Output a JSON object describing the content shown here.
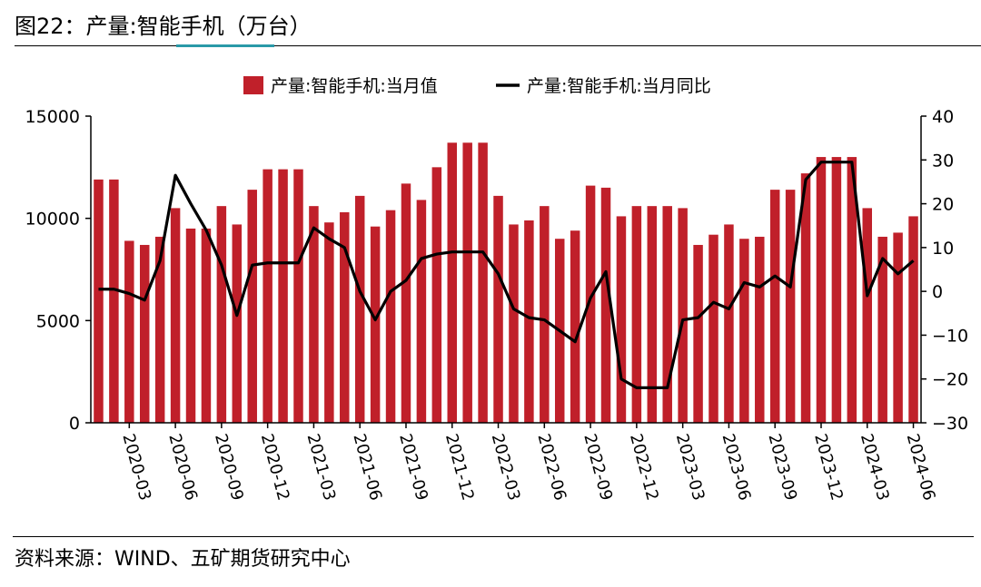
{
  "header": {
    "title": "图22：产量:智能手机（万台）"
  },
  "footer": {
    "source": "资料来源：WIND、五矿期货研究中心"
  },
  "chart_data": {
    "type": "bar+line",
    "title": "产量:智能手机（万台）",
    "categories": [
      "2020-01",
      "2020-02",
      "2020-03",
      "2020-04",
      "2020-05",
      "2020-06",
      "2020-07",
      "2020-08",
      "2020-09",
      "2020-10",
      "2020-11",
      "2020-12",
      "2021-01",
      "2021-02",
      "2021-03",
      "2021-04",
      "2021-05",
      "2021-06",
      "2021-07",
      "2021-08",
      "2021-09",
      "2021-10",
      "2021-11",
      "2021-12",
      "2022-01",
      "2022-02",
      "2022-03",
      "2022-04",
      "2022-05",
      "2022-06",
      "2022-07",
      "2022-08",
      "2022-09",
      "2022-10",
      "2022-11",
      "2022-12",
      "2023-01",
      "2023-02",
      "2023-03",
      "2023-04",
      "2023-05",
      "2023-06",
      "2023-07",
      "2023-08",
      "2023-09",
      "2023-10",
      "2023-11",
      "2023-12",
      "2024-01",
      "2024-02",
      "2024-03",
      "2024-04",
      "2024-05",
      "2024-06"
    ],
    "tick_labels": [
      "2020-03",
      "2020-06",
      "2020-09",
      "2020-12",
      "2021-03",
      "2021-06",
      "2021-09",
      "2021-12",
      "2022-03",
      "2022-06",
      "2022-09",
      "2022-12",
      "2023-03",
      "2023-06",
      "2023-09",
      "2023-12",
      "2024-03",
      "2024-06"
    ],
    "series": [
      {
        "name": "产量:智能手机:当月值",
        "type": "bar",
        "axis": "left",
        "color": "#c0202a",
        "values": [
          11900,
          11900,
          8900,
          8700,
          9100,
          10500,
          9500,
          9500,
          10600,
          9700,
          11400,
          12400,
          12400,
          12400,
          10600,
          9800,
          10300,
          11100,
          9600,
          10400,
          11700,
          10900,
          12500,
          13700,
          13700,
          13700,
          11100,
          9700,
          9900,
          10600,
          9000,
          9400,
          11600,
          11500,
          10100,
          10600,
          10600,
          10600,
          10500,
          8700,
          9200,
          9700,
          9000,
          9100,
          11400,
          11400,
          12200,
          13000,
          13000,
          13000,
          10500,
          9100,
          9300,
          10100
        ]
      },
      {
        "name": "产量:智能手机:当月同比",
        "type": "line",
        "axis": "right",
        "color": "#000000",
        "values": [
          0.5,
          0.5,
          -0.5,
          -2,
          7,
          26.5,
          20,
          14,
          6,
          -5.5,
          6,
          6.5,
          6.5,
          6.5,
          14.5,
          12,
          10,
          0,
          -6.5,
          0,
          2.5,
          7.5,
          8.5,
          9,
          9,
          9,
          4,
          -4,
          -6,
          -6.5,
          -9,
          -11.5,
          -1.5,
          4.5,
          -20,
          -22,
          -22,
          -22,
          -6.5,
          -6,
          -2.5,
          -4,
          2,
          1,
          3.5,
          1,
          25.5,
          29.5,
          29.5,
          29.5,
          -1,
          7.5,
          4,
          7
        ]
      }
    ],
    "y_left": {
      "min": 0,
      "max": 15000,
      "ticks": [
        0,
        5000,
        10000,
        15000
      ]
    },
    "y_right": {
      "min": -30,
      "max": 40,
      "ticks": [
        -30,
        -20,
        -10,
        0,
        10,
        20,
        30,
        40
      ]
    },
    "legend": {
      "position": "top-center"
    }
  }
}
